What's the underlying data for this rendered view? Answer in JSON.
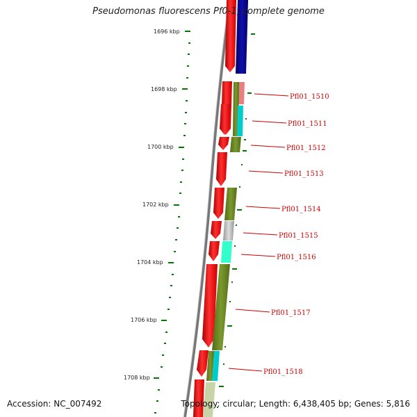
{
  "title": "Pseudomonas fluorescens Pf0-1, complete genome",
  "footer": {
    "accession": "Accession: NC_007492",
    "topology": "Topology: circular; Length: 6,438,405 bp; Genes: 5,816"
  },
  "scale_ticks": [
    "1696 kbp",
    "1698 kbp",
    "1700 kbp",
    "1702 kbp",
    "1704 kbp",
    "1706 kbp",
    "1708 kbp"
  ],
  "gene_labels": [
    "Pfl01_1510",
    "Pfl01_1511",
    "Pfl01_1512",
    "Pfl01_1513",
    "Pfl01_1514",
    "Pfl01_1515",
    "Pfl01_1516",
    "Pfl01_1517",
    "Pfl01_1518"
  ],
  "colors": {
    "forward_genes": "#ee1111",
    "navy_feature": "#000088",
    "olive_feature": "#6b8e23",
    "cyan_feature": "#00cccc",
    "aqua_feature": "#33ffcc",
    "pink_feature": "#e88080",
    "grey_feature": "#bbbbbb",
    "tick_green": "#007700",
    "label_red": "#cc0000",
    "backbone": "#777777"
  }
}
